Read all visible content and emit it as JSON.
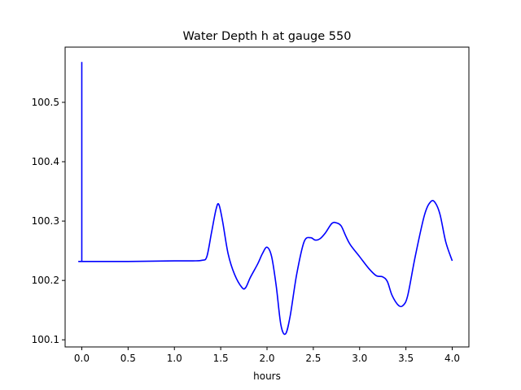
{
  "chart_data": {
    "type": "line",
    "title": "Water Depth h at gauge 550",
    "xlabel": "hours",
    "ylabel": "",
    "xlim": [
      -0.18,
      4.18
    ],
    "ylim": [
      100.088,
      100.593
    ],
    "xticks": [
      "0.0",
      "0.5",
      "1.0",
      "1.5",
      "2.0",
      "2.5",
      "3.0",
      "3.5",
      "4.0"
    ],
    "yticks": [
      "100.1",
      "100.2",
      "100.3",
      "100.4",
      "100.5"
    ],
    "grid": false,
    "series": [
      {
        "color": "#0000ff",
        "x": [
          0.0,
          0.0,
          0.005,
          0.5,
          1.0,
          1.2,
          1.3,
          1.35,
          1.4,
          1.45,
          1.48,
          1.52,
          1.58,
          1.65,
          1.73,
          1.77,
          1.82,
          1.9,
          1.95,
          2.0,
          2.05,
          2.1,
          2.15,
          2.2,
          2.25,
          2.32,
          2.4,
          2.47,
          2.52,
          2.57,
          2.63,
          2.7,
          2.75,
          2.8,
          2.85,
          2.9,
          3.0,
          3.1,
          3.18,
          3.25,
          3.3,
          3.35,
          3.42,
          3.47,
          3.52,
          3.6,
          3.7,
          3.77,
          3.82,
          3.87,
          3.93,
          4.0
        ],
        "y": [
          100.568,
          100.232,
          100.232,
          100.232,
          100.233,
          100.233,
          100.234,
          100.24,
          100.28,
          100.32,
          100.328,
          100.3,
          100.245,
          100.21,
          100.188,
          100.188,
          100.205,
          100.228,
          100.245,
          100.256,
          100.24,
          100.19,
          100.125,
          100.11,
          100.14,
          100.21,
          100.265,
          100.272,
          100.268,
          100.27,
          100.28,
          100.296,
          100.297,
          100.292,
          100.275,
          100.26,
          100.24,
          100.22,
          100.208,
          100.206,
          100.198,
          100.175,
          100.158,
          100.158,
          100.175,
          100.24,
          100.31,
          100.333,
          100.33,
          100.31,
          100.265,
          100.233
        ]
      }
    ]
  }
}
